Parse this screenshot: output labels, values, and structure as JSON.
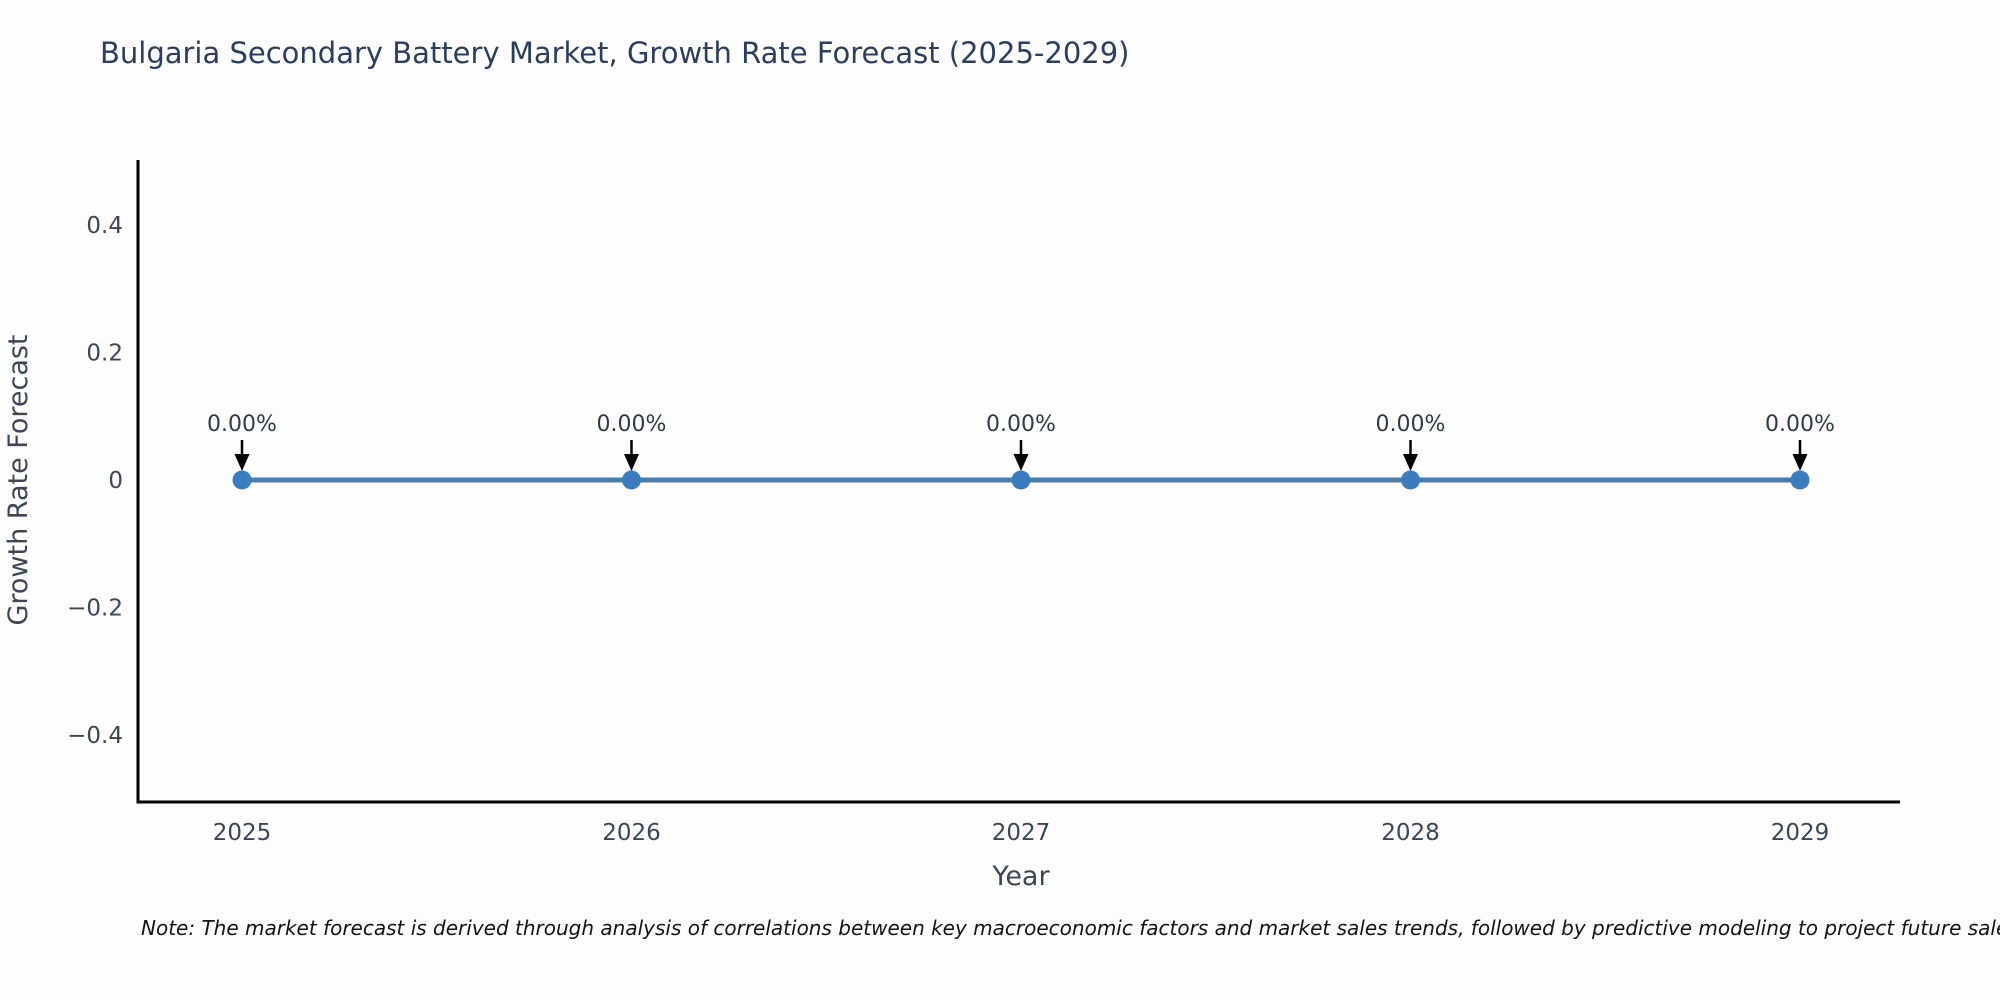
{
  "title": "Bulgaria Secondary Battery Market, Growth Rate Forecast (2025-2029)",
  "note": "Note: The market forecast is derived through analysis of correlations between key macroeconomic factors and market sales trends, followed by predictive modeling to project future sales",
  "chart_data": {
    "type": "line",
    "x": [
      2025,
      2026,
      2027,
      2028,
      2029
    ],
    "series": [
      {
        "name": "Growth Rate Forecast",
        "values": [
          0,
          0,
          0,
          0,
          0
        ]
      }
    ],
    "point_labels": [
      "0.00%",
      "0.00%",
      "0.00%",
      "0.00%",
      "0.00%"
    ],
    "title": "Bulgaria Secondary Battery Market, Growth Rate Forecast (2025-2029)",
    "xlabel": "Year",
    "ylabel": "Growth Rate Forecast",
    "ylim": [
      -0.5,
      0.5
    ],
    "yticks": [
      0.4,
      0.2,
      0,
      -0.2,
      -0.4
    ],
    "ytick_labels": [
      "0.4",
      "0.2",
      "0",
      "−0.2",
      "−0.4"
    ],
    "xtick_labels": [
      "2025",
      "2026",
      "2027",
      "2028",
      "2029"
    ],
    "grid": false,
    "legend": false,
    "annotation_style": "down-arrow",
    "colors": {
      "line": "#4a7dab",
      "marker": "#3a7cbe",
      "axis": "#000000",
      "tick_text": "#3d4655",
      "axis_title_text": "#3d4655",
      "title_text": "#2c3e5a",
      "annotation_text": "#333a47",
      "arrow": "#000000"
    }
  }
}
